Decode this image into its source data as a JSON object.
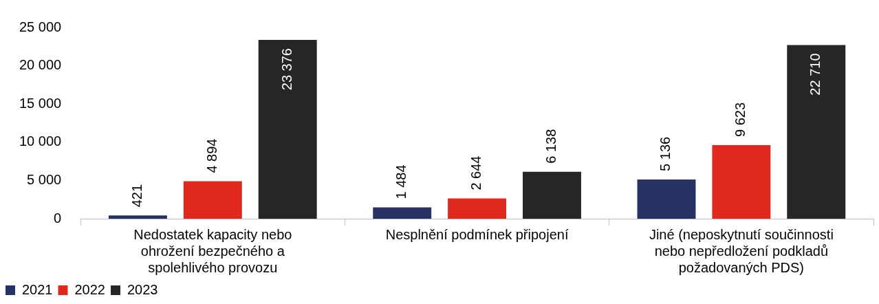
{
  "chart_data": {
    "type": "bar",
    "categories": [
      "Nedostatek kapacity nebo ohrožení bezpečného a spolehlivého provozu",
      "Nesplnění podmínek připojení",
      "Jiné (neposkytnutí součinnosti nebo nepředložení podkladů požadovaných PDS)"
    ],
    "series": [
      {
        "name": "2021",
        "color": "#253263",
        "values": [
          421,
          1484,
          5136
        ],
        "value_labels": [
          "421",
          "1 484",
          "5 136"
        ]
      },
      {
        "name": "2022",
        "color": "#e0281f",
        "values": [
          4894,
          2644,
          9623
        ],
        "value_labels": [
          "4 894",
          "2 644",
          "9 623"
        ]
      },
      {
        "name": "2023",
        "color": "#262626",
        "values": [
          23376,
          6138,
          22710
        ],
        "value_labels": [
          "23 376",
          "6 138",
          "22 710"
        ]
      }
    ],
    "ylim": [
      0,
      25000
    ],
    "yticks": [
      {
        "value": 0,
        "label": "0"
      },
      {
        "value": 5000,
        "label": "5 000"
      },
      {
        "value": 10000,
        "label": "10 000"
      },
      {
        "value": 15000,
        "label": "15 000"
      },
      {
        "value": 20000,
        "label": "20 000"
      },
      {
        "value": 25000,
        "label": "25 000"
      }
    ],
    "grid": false,
    "legend": "bottom left"
  }
}
